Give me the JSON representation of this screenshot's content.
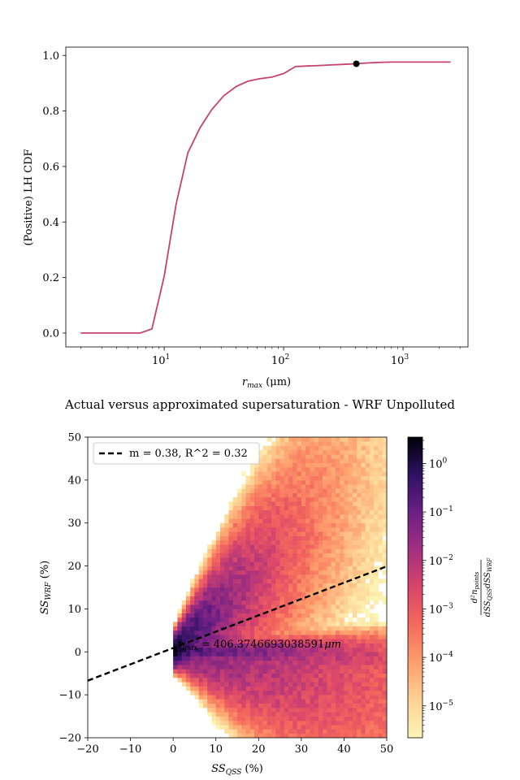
{
  "chart_data": [
    {
      "type": "line",
      "title": "",
      "xlabel_prefix": "r",
      "xlabel_sub": "max",
      "xlabel_unit": " (μm)",
      "ylabel": "(Positive) LH CDF",
      "xscale": "log",
      "xlim": [
        1.5,
        3500
      ],
      "ylim": [
        -0.05,
        1.03
      ],
      "yticks": [
        "0.0",
        "0.2",
        "0.4",
        "0.6",
        "0.8",
        "1.0"
      ],
      "yticks_values": [
        0,
        0.2,
        0.4,
        0.6,
        0.8,
        1.0
      ],
      "xticks": [
        {
          "base": "10",
          "exp": "1",
          "value": 10
        },
        {
          "base": "10",
          "exp": "2",
          "value": 100
        },
        {
          "base": "10",
          "exp": "3",
          "value": 1000
        }
      ],
      "line_color": "#c7426e",
      "series": [
        {
          "x": [
            2,
            2.5,
            3.2,
            4,
            5,
            6.3,
            7.9,
            10,
            12.6,
            15.8,
            20,
            25,
            31.6,
            40,
            50,
            63,
            80,
            100,
            126,
            158,
            200,
            250,
            320,
            400,
            500,
            630,
            800,
            1000,
            1260,
            1580,
            2000,
            2500
          ],
          "y": [
            0.0,
            0.0,
            0.0,
            0.0,
            0.0,
            0.0,
            0.015,
            0.205,
            0.465,
            0.65,
            0.74,
            0.805,
            0.855,
            0.888,
            0.907,
            0.916,
            0.922,
            0.935,
            0.96,
            0.962,
            0.964,
            0.966,
            0.968,
            0.97,
            0.973,
            0.975,
            0.976,
            0.976,
            0.976,
            0.976,
            0.976,
            0.976
          ]
        }
      ],
      "marker": {
        "x": 406.37,
        "y": 0.97,
        "color": "#000000"
      }
    },
    {
      "type": "heatmap",
      "title": "Actual versus approximated supersaturation - WRF Unpolluted",
      "xlabel_prefix": "SS",
      "xlabel_sub": "QSS",
      "xlabel_unit": " (%)",
      "ylabel_prefix": "SS",
      "ylabel_sub": "WRF",
      "ylabel_unit": " (%)",
      "xlim": [
        -20,
        50
      ],
      "ylim": [
        -20,
        50
      ],
      "xticks": [
        "−20",
        "−10",
        "0",
        "10",
        "20",
        "30",
        "40",
        "50"
      ],
      "xticks_values": [
        -20,
        -10,
        0,
        10,
        20,
        30,
        40,
        50
      ],
      "yticks": [
        "−20",
        "−10",
        "0",
        "10",
        "20",
        "30",
        "40",
        "50"
      ],
      "yticks_values": [
        -20,
        -10,
        0,
        10,
        20,
        30,
        40,
        50
      ],
      "fit_line": {
        "slope": 0.38,
        "intercept": 0.9,
        "style": "dashed",
        "color": "#000000"
      },
      "legend": {
        "label": "m = 0.38, R^2 = 0.32",
        "placement": "top-left"
      },
      "annotation": {
        "prefix": "r",
        "sub": "max",
        "value": " = 406.3746693038591",
        "unit": "μm",
        "x": 1,
        "y": 1
      },
      "colorbar": {
        "scale": "log",
        "colormap": "magma_r",
        "range": [
          2.2e-06,
          3.5
        ],
        "ticks": [
          {
            "base": "10",
            "exp": "−5",
            "value": 1e-05
          },
          {
            "base": "10",
            "exp": "−4",
            "value": 0.0001
          },
          {
            "base": "10",
            "exp": "−3",
            "value": 0.001
          },
          {
            "base": "10",
            "exp": "−2",
            "value": 0.01
          },
          {
            "base": "10",
            "exp": "−1",
            "value": 0.1
          },
          {
            "base": "10",
            "exp": "0",
            "value": 1
          }
        ],
        "label_numerator": "d²n",
        "label_num_sub": "points",
        "label_denominator": "dSS",
        "label_den_sub1": "QSS",
        "label_den_mid": "dSS",
        "label_den_sub2": "WRF"
      }
    }
  ]
}
